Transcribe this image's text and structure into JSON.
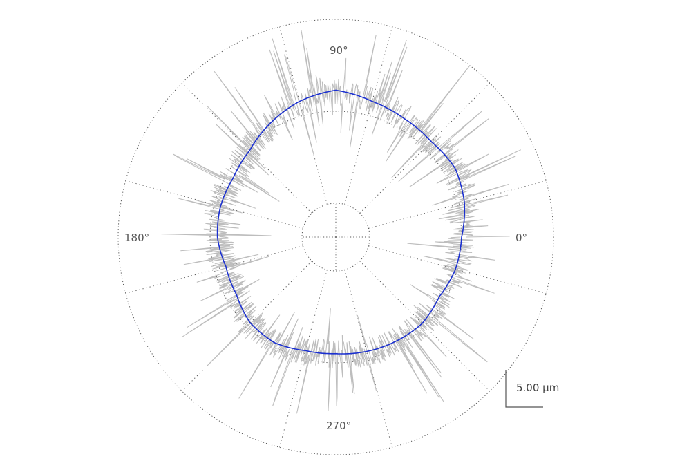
{
  "chart_data": {
    "type": "polar-line",
    "title": "",
    "angle_labels": [
      {
        "angle": 0,
        "text": "0°"
      },
      {
        "angle": 90,
        "text": "90°"
      },
      {
        "angle": 180,
        "text": "180°"
      },
      {
        "angle": 270,
        "text": "270°"
      }
    ],
    "grid": true,
    "reference_rings_um": [
      -10,
      0,
      10
    ],
    "reference_angles_deg": [
      0,
      90,
      180,
      270
    ],
    "scale_bar": {
      "value_um": 5.0,
      "label": "5.00 µm"
    },
    "colors": {
      "raw_profile": "#bdbdbd",
      "filtered_profile": "#1a2fd0",
      "grid": "#555555",
      "scale_bar": "#555555"
    },
    "series": [
      {
        "role": "filtered",
        "angle_deg": [
          0,
          15,
          30,
          45,
          60,
          75,
          90,
          105,
          120,
          135,
          150,
          165,
          180,
          195,
          210,
          225,
          240,
          255,
          270,
          285,
          300,
          315,
          330,
          345
        ],
        "deviation_um": [
          0.0,
          0.8,
          1.3,
          1.0,
          1.2,
          1.6,
          2.3,
          1.6,
          0.6,
          -0.4,
          -0.8,
          -0.7,
          -0.8,
          -1.3,
          -1.2,
          -0.5,
          -0.4,
          -0.9,
          -1.0,
          -0.8,
          -0.6,
          -0.4,
          -0.7,
          -0.2
        ]
      }
    ],
    "raw_profile": {
      "deviation_range_um": [
        -10,
        14
      ],
      "note_samples": "dense noisy roughness profile"
    }
  }
}
